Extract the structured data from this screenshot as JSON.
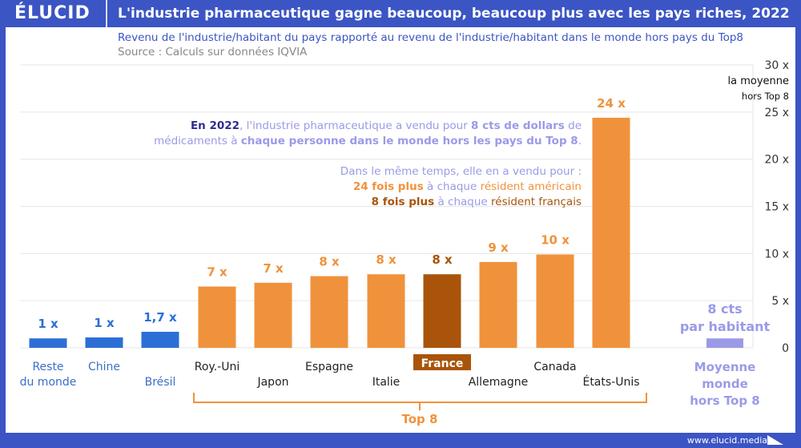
{
  "header": {
    "logo": "ÉLUCID",
    "title": "L'industrie pharmaceutique gagne beaucoup, beaucoup plus avec les pays riches, 2022"
  },
  "subtitle": "Revenu de l'industrie/habitant du pays rapporté au revenu de l'industrie/habitant dans le monde hors pays du Top8",
  "source": "Source : Calculs sur données IQVIA",
  "annotation": {
    "p1": {
      "a": "En 2022",
      "b": ", l'industrie pharmaceutique a vendu pour ",
      "c": "8 cts de dollars",
      "d": " de",
      "e": "médicaments à ",
      "f": "chaque personne dans le monde hors les pays du Top 8",
      "g": "."
    },
    "p2": {
      "a": "Dans le même temps, elle en a vendu pour :",
      "b": "24 fois plus",
      "c": " à chaque ",
      "d": "résident américain",
      "e": "8 fois plus",
      "f": " à chaque ",
      "g": "résident français"
    }
  },
  "footer": "www.elucid.media",
  "colors": {
    "header": "#3b55c4",
    "blue": "#2b6fd6",
    "orange": "#f0923c",
    "france": "#a9540a",
    "purple": "#9a9ae8",
    "dark_purple": "#2e2e8f"
  },
  "chart_data": {
    "type": "bar",
    "ylim": [
      0,
      30
    ],
    "yticks": [
      "0",
      "5 x",
      "10 x",
      "15 x",
      "20 x",
      "25 x",
      "30 x"
    ],
    "ylabel_note": [
      "la moyenne",
      "hors Top 8"
    ],
    "grid": true,
    "categories": [
      "Reste du monde",
      "Chine",
      "Brésil",
      "Roy.-Uni",
      "Japon",
      "Espagne",
      "Italie",
      "France",
      "Allemagne",
      "Canada",
      "États-Unis"
    ],
    "values": [
      1,
      1.1,
      1.7,
      6.5,
      6.9,
      7.6,
      7.8,
      7.8,
      9.1,
      9.9,
      24.4
    ],
    "value_labels": [
      "1 x",
      "1 x",
      "1,7 x",
      "7 x",
      "7 x",
      "8 x",
      "8 x",
      "8 x",
      "9 x",
      "10 x",
      "24 x"
    ],
    "groups": [
      "other",
      "other",
      "other",
      "top8",
      "top8",
      "top8",
      "top8",
      "france",
      "top8",
      "top8",
      "top8"
    ],
    "bracket_label": "Top 8",
    "reference": {
      "category": "Moyenne monde hors Top 8",
      "label_lines": [
        "Moyenne",
        "monde",
        "hors Top 8"
      ],
      "value": 1,
      "value_label_lines": [
        "8 cts",
        "par habitant"
      ]
    }
  }
}
